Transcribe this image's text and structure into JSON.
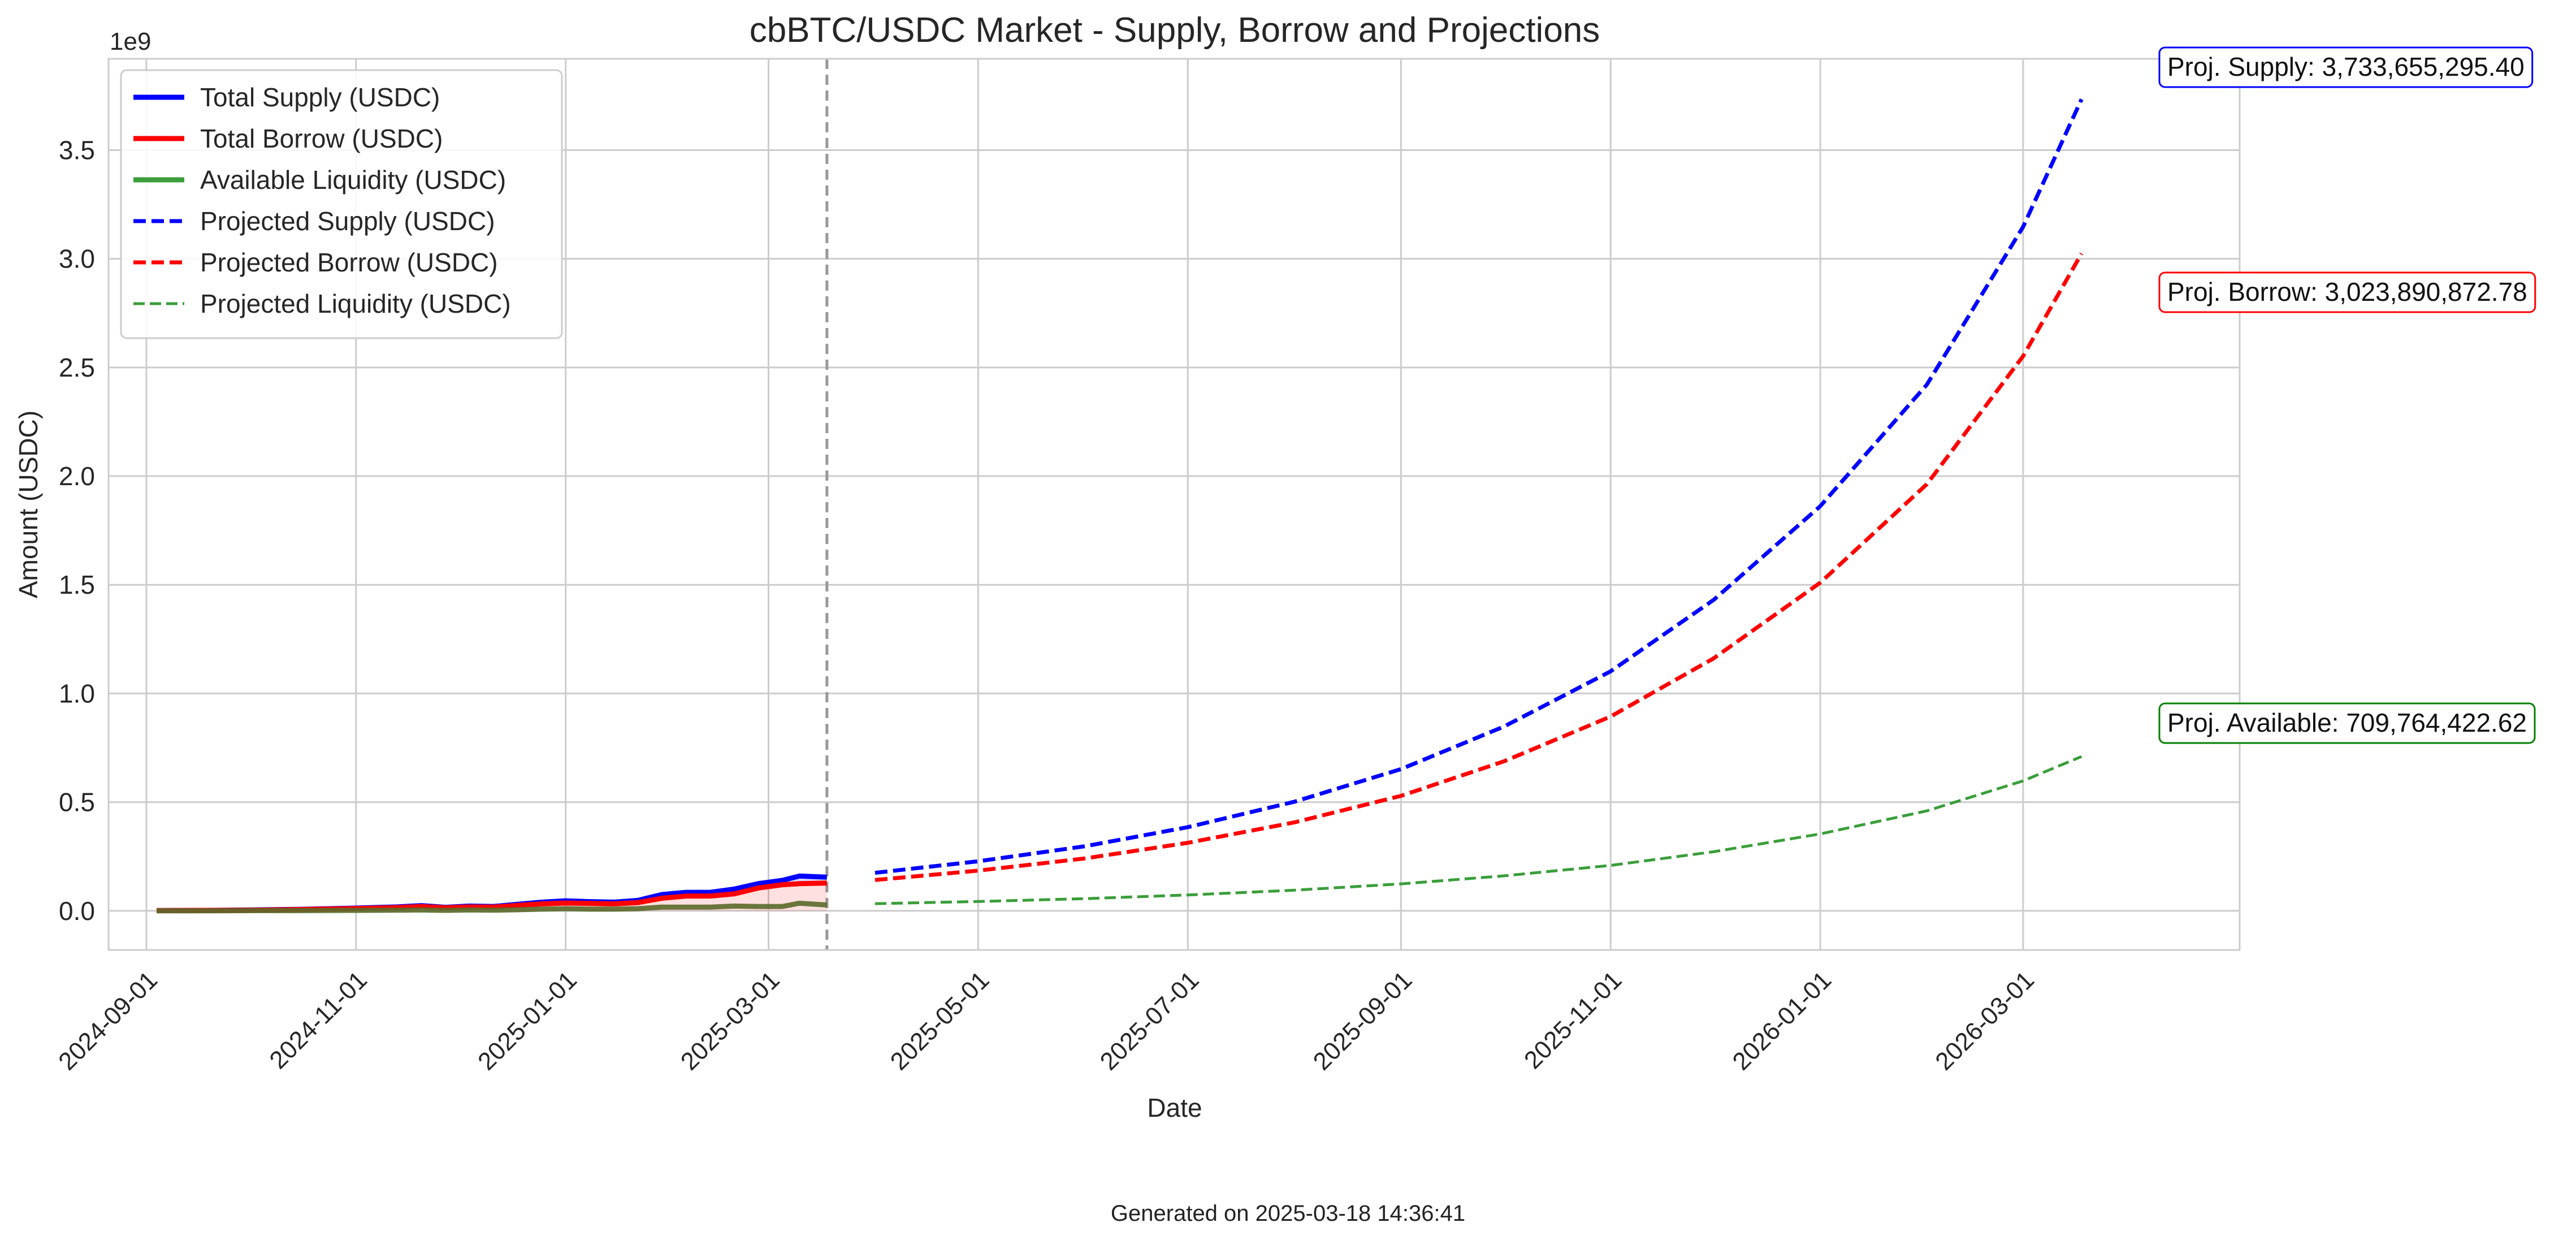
{
  "chart_data": {
    "type": "line",
    "title": "cbBTC/USDC Market - Supply, Borrow and Projections",
    "xlabel": "Date",
    "ylabel": "Amount (USDC)",
    "y_offset_label": "1e9",
    "ylim": [
      -0.18,
      3.92
    ],
    "xlim": [
      "2024-08-21",
      "2026-05-03"
    ],
    "grid": true,
    "legend_position": "top-left",
    "x_ticks": [
      "2024-09-01",
      "2024-11-01",
      "2025-01-01",
      "2025-03-01",
      "2025-05-01",
      "2025-07-01",
      "2025-09-01",
      "2025-11-01",
      "2026-01-01",
      "2026-03-01"
    ],
    "y_ticks": [
      "0.0",
      "0.5",
      "1.0",
      "1.5",
      "2.0",
      "2.5",
      "3.0",
      "3.5"
    ],
    "divider_date": "2025-03-18",
    "series": [
      {
        "name": "Total Supply (USDC)",
        "color": "#0000ff",
        "style": "solid",
        "x": [
          "2024-09-04",
          "2024-09-18",
          "2024-10-02",
          "2024-10-16",
          "2024-10-30",
          "2024-11-13",
          "2024-11-20",
          "2024-11-27",
          "2024-12-04",
          "2024-12-11",
          "2024-12-18",
          "2024-12-25",
          "2025-01-01",
          "2025-01-08",
          "2025-01-15",
          "2025-01-22",
          "2025-01-29",
          "2025-02-05",
          "2025-02-12",
          "2025-02-19",
          "2025-02-26",
          "2025-03-05",
          "2025-03-10",
          "2025-03-18"
        ],
        "values": [
          0.001,
          0.002,
          0.004,
          0.007,
          0.012,
          0.018,
          0.024,
          0.016,
          0.022,
          0.02,
          0.03,
          0.04,
          0.046,
          0.042,
          0.04,
          0.048,
          0.075,
          0.085,
          0.085,
          0.1,
          0.125,
          0.14,
          0.16,
          0.155
        ]
      },
      {
        "name": "Total Borrow (USDC)",
        "color": "#ff0000",
        "style": "solid",
        "x": [
          "2024-09-04",
          "2024-09-18",
          "2024-10-02",
          "2024-10-16",
          "2024-10-30",
          "2024-11-13",
          "2024-11-20",
          "2024-11-27",
          "2024-12-04",
          "2024-12-11",
          "2024-12-18",
          "2024-12-25",
          "2025-01-01",
          "2025-01-08",
          "2025-01-15",
          "2025-01-22",
          "2025-01-29",
          "2025-02-05",
          "2025-02-12",
          "2025-02-19",
          "2025-02-26",
          "2025-03-05",
          "2025-03-10",
          "2025-03-18"
        ],
        "values": [
          0.001,
          0.002,
          0.003,
          0.006,
          0.01,
          0.015,
          0.02,
          0.014,
          0.018,
          0.017,
          0.025,
          0.032,
          0.036,
          0.034,
          0.032,
          0.038,
          0.058,
          0.068,
          0.068,
          0.078,
          0.105,
          0.12,
          0.125,
          0.128
        ]
      },
      {
        "name": "Available Liquidity (USDC)",
        "color": "#3a9e3a",
        "style": "solid",
        "x": [
          "2024-09-04",
          "2024-09-18",
          "2024-10-02",
          "2024-10-16",
          "2024-10-30",
          "2024-11-13",
          "2024-11-20",
          "2024-11-27",
          "2024-12-04",
          "2024-12-11",
          "2024-12-18",
          "2024-12-25",
          "2025-01-01",
          "2025-01-08",
          "2025-01-15",
          "2025-01-22",
          "2025-01-29",
          "2025-02-05",
          "2025-02-12",
          "2025-02-19",
          "2025-02-26",
          "2025-03-05",
          "2025-03-10",
          "2025-03-18"
        ],
        "values": [
          0.0,
          0.0,
          0.001,
          0.001,
          0.002,
          0.003,
          0.004,
          0.002,
          0.004,
          0.003,
          0.005,
          0.008,
          0.01,
          0.008,
          0.008,
          0.01,
          0.017,
          0.017,
          0.017,
          0.022,
          0.02,
          0.02,
          0.035,
          0.027
        ]
      },
      {
        "name": "Projected Supply (USDC)",
        "color": "#0000ff",
        "style": "dashed",
        "x": [
          "2025-04-01",
          "2025-05-01",
          "2025-06-01",
          "2025-07-01",
          "2025-08-01",
          "2025-09-01",
          "2025-10-01",
          "2025-11-01",
          "2025-12-01",
          "2026-01-01",
          "2026-02-01",
          "2026-03-01",
          "2026-03-18"
        ],
        "values": [
          0.175,
          0.228,
          0.297,
          0.385,
          0.502,
          0.652,
          0.848,
          1.102,
          1.431,
          1.862,
          2.421,
          3.147,
          3.734
        ]
      },
      {
        "name": "Projected Borrow (USDC)",
        "color": "#ff0000",
        "style": "dashed",
        "x": [
          "2025-04-01",
          "2025-05-01",
          "2025-06-01",
          "2025-07-01",
          "2025-08-01",
          "2025-09-01",
          "2025-10-01",
          "2025-11-01",
          "2025-12-01",
          "2026-01-01",
          "2026-02-01",
          "2026-03-01",
          "2026-03-18"
        ],
        "values": [
          0.142,
          0.185,
          0.241,
          0.313,
          0.407,
          0.529,
          0.688,
          0.894,
          1.162,
          1.51,
          1.963,
          2.552,
          3.024
        ]
      },
      {
        "name": "Projected Liquidity (USDC)",
        "color": "#3a9e3a",
        "style": "dashed",
        "x": [
          "2025-04-01",
          "2025-05-01",
          "2025-06-01",
          "2025-07-01",
          "2025-08-01",
          "2025-09-01",
          "2025-10-01",
          "2025-11-01",
          "2025-12-01",
          "2026-01-01",
          "2026-02-01",
          "2026-03-01",
          "2026-03-18"
        ],
        "values": [
          0.033,
          0.043,
          0.056,
          0.073,
          0.095,
          0.124,
          0.161,
          0.209,
          0.272,
          0.354,
          0.46,
          0.598,
          0.71
        ]
      }
    ],
    "annotations": [
      {
        "text": "Proj. Supply: 3,733,655,295.40",
        "color": "#0000ff",
        "x": "2026-03-18",
        "y": 3.734
      },
      {
        "text": "Proj. Borrow: 3,023,890,872.78",
        "color": "#ff0000",
        "x": "2026-03-18",
        "y": 3.024
      },
      {
        "text": "Proj. Available: 709,764,422.62",
        "color": "#008000",
        "x": "2026-03-18",
        "y": 0.71
      }
    ]
  },
  "footer": "Generated on 2025-03-18 14:36:41"
}
